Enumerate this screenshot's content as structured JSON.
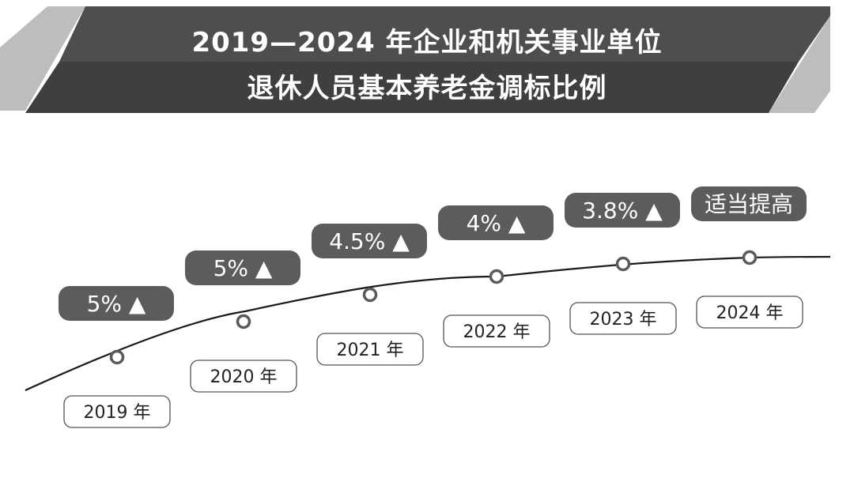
{
  "title": {
    "line1": "2019—2024 年企业和机关事业单位",
    "line2": "退休人员基本养老金调标比例"
  },
  "colors": {
    "banner_top": "#4e4e4e",
    "banner_bottom": "#3f3f3f",
    "banner_side": "#bdbdbd",
    "badge": "#5c5c5c",
    "badge_text": "#ffffff",
    "curve": "#1a1a1a",
    "marker": "#5a5a5a",
    "year_box_border": "#555555"
  },
  "chart_data": {
    "type": "line",
    "title": "2019—2024 年企业和机关事业单位退休人员基本养老金调标比例",
    "categories": [
      "2019 年",
      "2020 年",
      "2021 年",
      "2022 年",
      "2023 年",
      "2024 年"
    ],
    "values": [
      5,
      5,
      4.5,
      4,
      3.8,
      null
    ],
    "labels": [
      "5% ▲",
      "5% ▲",
      "4.5% ▲",
      "4% ▲",
      "3.8% ▲",
      "适当提高"
    ],
    "xlabel": "",
    "ylabel": "",
    "grid": false,
    "legend": "none"
  }
}
